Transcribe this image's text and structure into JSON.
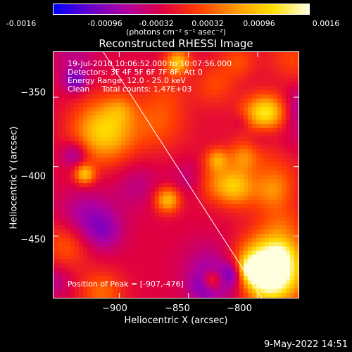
{
  "colorbar": {
    "tick_labels": [
      "-0.0016",
      "-0.00096",
      "-0.00032",
      "0.00032",
      "0.00096",
      "0.0016"
    ],
    "unit_label": "(photons cm⁻² s⁻¹ asec⁻²)",
    "colormap": [
      "#0000ff",
      "#6a00cc",
      "#b000a0",
      "#e00040",
      "#ff4000",
      "#ff9900",
      "#ffe000",
      "#ffffe0"
    ]
  },
  "chart_data": {
    "type": "heatmap",
    "title": "Reconstructed RHESSI Image",
    "xlabel": "Heliocentric X (arcsec)",
    "ylabel": "Heliocentric Y (arcsec)",
    "xlim": [
      -948,
      -770
    ],
    "ylim": [
      -495,
      -317
    ],
    "x_ticks": [
      -900,
      -850,
      -800
    ],
    "y_ticks": [
      -350,
      -400,
      -450
    ],
    "x_tick_labels": [
      "−900",
      "−850",
      "−800"
    ],
    "y_tick_labels": [
      "−350",
      "−400",
      "−450"
    ],
    "value_range": [
      -0.0016,
      0.0016
    ],
    "limb_line": [
      [
        -912,
        -317
      ],
      [
        -797,
        -495
      ]
    ],
    "annotations": {
      "time_range": "19-Jul-2010 10:06:52.000 to 10:07:56.000",
      "detectors": "Detectors: 3F 4F 5F 6F 7F 8F, Att 0",
      "energy_range": "Energy Range: 12.0 - 25.0 keV",
      "clean_counts": "Clean     Total counts: 1.47E+03",
      "peak": "Position of Peak = [-907,-476]"
    }
  },
  "footer": {
    "timestamp": "9-May-2022 14:51"
  }
}
